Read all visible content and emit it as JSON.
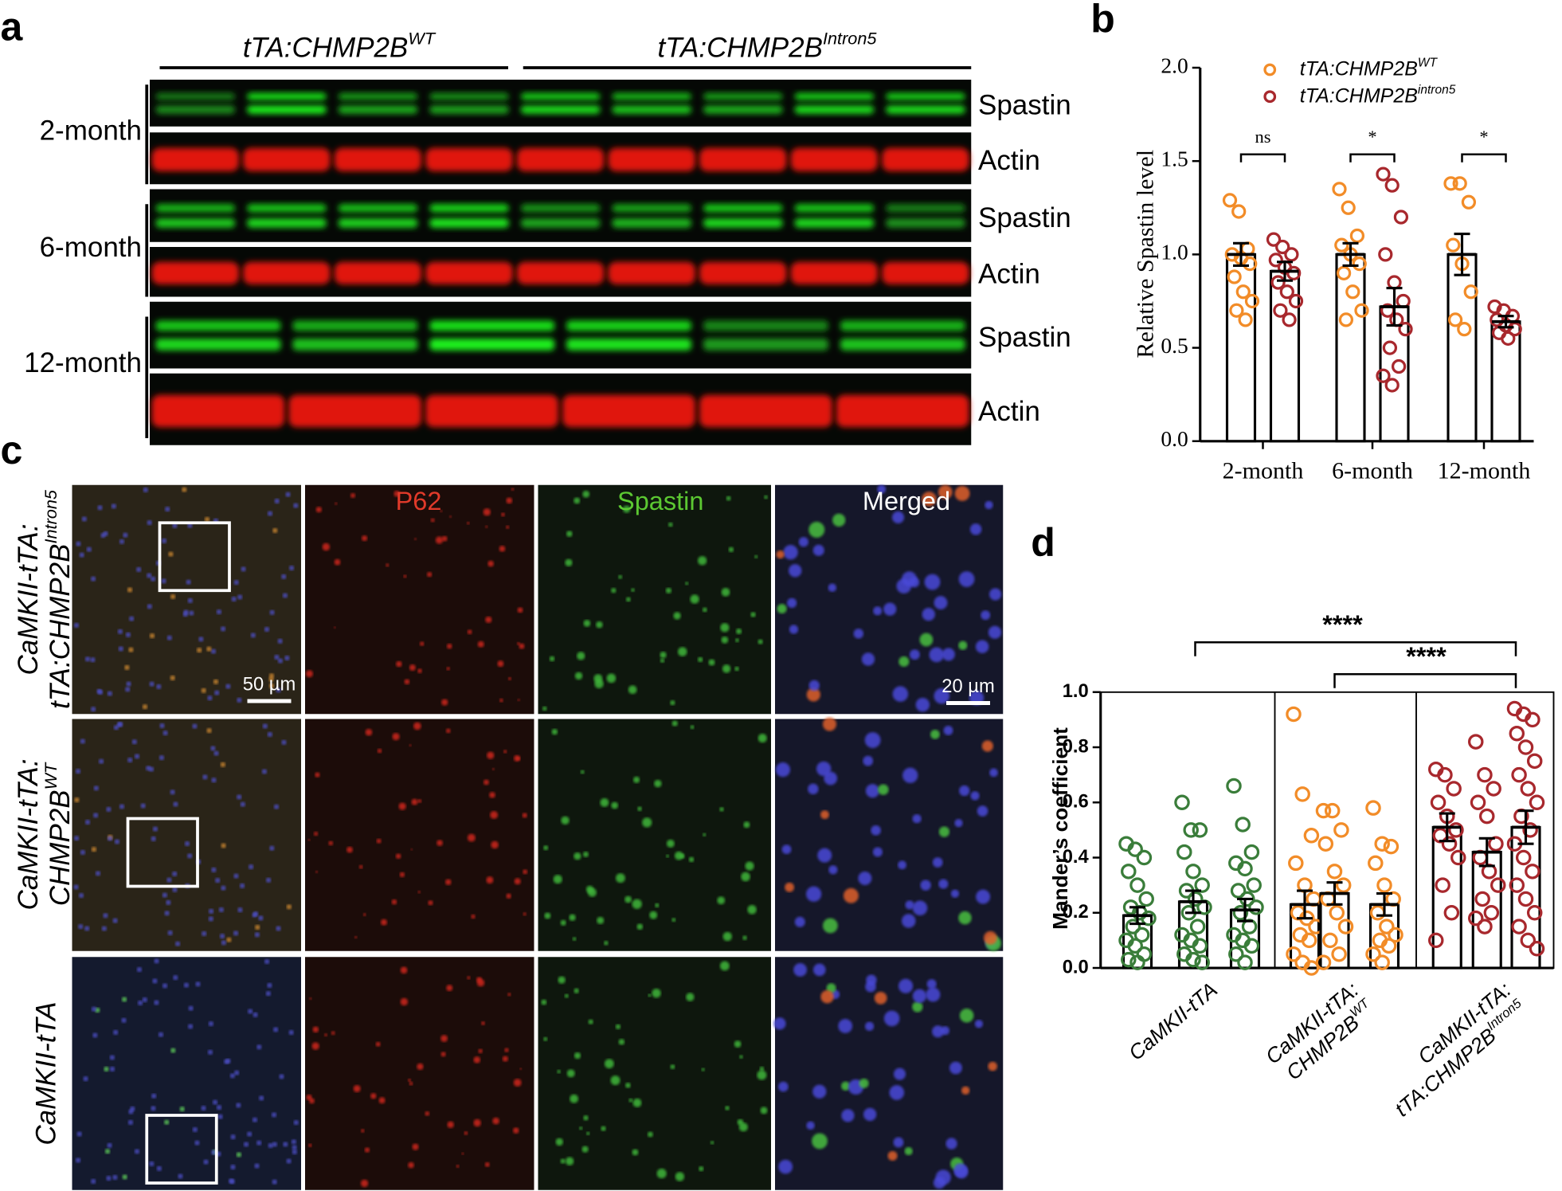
{
  "panel_labels": [
    "a",
    "b",
    "c",
    "d"
  ],
  "blot": {
    "groups": [
      {
        "text": "tTA:CHMP2B",
        "sup": "WT"
      },
      {
        "text": "tTA:CHMP2B",
        "sup": "Intron5"
      }
    ],
    "timepoints": [
      "2-month",
      "6-month",
      "12-month"
    ],
    "bands": [
      "Spastin",
      "Actin"
    ]
  },
  "micrographs": {
    "rows": [
      {
        "line1": "CaMKII-tTA:",
        "line2": "tTA:CHMP2B",
        "sup": "Intron5"
      },
      {
        "line1": "CaMKII-tTA:",
        "line2": "CHMP2B",
        "sup": "WT"
      },
      {
        "line1": "CaMKII-tTA"
      }
    ],
    "columns": [
      "P62",
      "Spastin",
      "Merged"
    ],
    "scale_bars": [
      "50 µm",
      "20 µm"
    ]
  },
  "chart_data": [
    {
      "type": "bar",
      "ylabel": "Relative Spastin level",
      "categories": [
        "2-month",
        "6-month",
        "12-month"
      ],
      "ylim": [
        0,
        2
      ],
      "yticks": [
        {
          "value": 0,
          "label": "0.0"
        },
        0.5,
        {
          "value": 1,
          "label": "1.0"
        },
        1.5,
        {
          "value": 2,
          "label": "2.0"
        }
      ],
      "series": [
        {
          "name": "tTA:CHMP2B",
          "superscript": "WT",
          "color": "#f28c28",
          "values": [
            1.0,
            1.0,
            1.0
          ],
          "errors": [
            0.06,
            0.06,
            0.11
          ],
          "points": [
            [
              1.29,
              1.23,
              1.03,
              1.0,
              0.98,
              0.95,
              0.88,
              0.8,
              0.75,
              0.7,
              0.65
            ],
            [
              1.35,
              1.25,
              1.1,
              1.05,
              1.0,
              0.95,
              0.9,
              0.8,
              0.7,
              0.65
            ],
            [
              1.38,
              1.38,
              1.28,
              1.05,
              0.95,
              0.8,
              0.65,
              0.6
            ]
          ]
        },
        {
          "name": "tTA:CHMP2B",
          "superscript": "intron5",
          "color": "#a8282d",
          "values": [
            0.91,
            0.72,
            0.64
          ],
          "errors": [
            0.05,
            0.1,
            0.03
          ],
          "points": [
            [
              1.08,
              1.04,
              1.0,
              0.97,
              0.93,
              0.9,
              0.85,
              0.8,
              0.75,
              0.7,
              0.65
            ],
            [
              1.43,
              1.37,
              1.2,
              1.0,
              0.85,
              0.75,
              0.7,
              0.65,
              0.6,
              0.5,
              0.4,
              0.35,
              0.3
            ],
            [
              0.72,
              0.7,
              0.67,
              0.65,
              0.62,
              0.6,
              0.58,
              0.55
            ]
          ]
        }
      ],
      "annotations": [
        "ns",
        "*",
        "*"
      ]
    },
    {
      "type": "bar",
      "ylabel": "Mander’s coefficient",
      "categories": [
        {
          "line1": "CaMKII-tTA"
        },
        {
          "line1": "CaMKII-tTA:",
          "line2": "CHMP2B",
          "sup": "WT"
        },
        {
          "line1": "CaMKII-tTA:",
          "line2": "tTA:CHMP2B",
          "sup": "Intron5"
        }
      ],
      "ylim": [
        0,
        1
      ],
      "yticks": [
        {
          "value": 0,
          "label": "0.0"
        },
        0.2,
        0.4,
        0.6,
        0.8,
        {
          "value": 1,
          "label": "1.0"
        }
      ],
      "groups": [
        {
          "color": "#3a7d3a",
          "values": [
            0.19,
            0.24,
            0.21
          ],
          "errors": [
            0.03,
            0.04,
            0.04
          ],
          "points": [
            [
              0.45,
              0.43,
              0.4,
              0.35,
              0.3,
              0.25,
              0.22,
              0.2,
              0.18,
              0.15,
              0.12,
              0.1,
              0.08,
              0.05,
              0.03,
              0.02
            ],
            [
              0.6,
              0.5,
              0.5,
              0.42,
              0.35,
              0.3,
              0.28,
              0.25,
              0.22,
              0.2,
              0.15,
              0.12,
              0.1,
              0.08,
              0.05,
              0.03,
              0.02
            ],
            [
              0.66,
              0.52,
              0.42,
              0.38,
              0.36,
              0.3,
              0.28,
              0.25,
              0.22,
              0.2,
              0.15,
              0.12,
              0.1,
              0.08,
              0.05,
              0.02
            ]
          ]
        },
        {
          "color": "#f28c28",
          "values": [
            0.23,
            0.27,
            0.23
          ],
          "errors": [
            0.05,
            0.04,
            0.04
          ],
          "points": [
            [
              0.92,
              0.63,
              0.48,
              0.38,
              0.3,
              0.25,
              0.2,
              0.18,
              0.15,
              0.12,
              0.1,
              0.05,
              0.02,
              0.0
            ],
            [
              0.57,
              0.57,
              0.5,
              0.45,
              0.35,
              0.3,
              0.25,
              0.2,
              0.15,
              0.1,
              0.05,
              0.02
            ],
            [
              0.58,
              0.45,
              0.44,
              0.38,
              0.3,
              0.25,
              0.2,
              0.15,
              0.12,
              0.1,
              0.08,
              0.05,
              0.02
            ]
          ]
        },
        {
          "color": "#a8282d",
          "values": [
            0.51,
            0.42,
            0.51
          ],
          "errors": [
            0.05,
            0.05,
            0.06
          ],
          "points": [
            [
              0.72,
              0.7,
              0.65,
              0.6,
              0.55,
              0.5,
              0.48,
              0.45,
              0.4,
              0.3,
              0.2,
              0.1
            ],
            [
              0.82,
              0.7,
              0.65,
              0.6,
              0.55,
              0.45,
              0.4,
              0.35,
              0.3,
              0.25,
              0.2,
              0.18,
              0.15
            ],
            [
              0.94,
              0.92,
              0.9,
              0.85,
              0.8,
              0.75,
              0.7,
              0.65,
              0.6,
              0.55,
              0.5,
              0.45,
              0.4,
              0.35,
              0.3,
              0.25,
              0.2,
              0.15,
              0.1,
              0.07
            ]
          ]
        }
      ],
      "significance": [
        "****",
        "****"
      ]
    }
  ]
}
